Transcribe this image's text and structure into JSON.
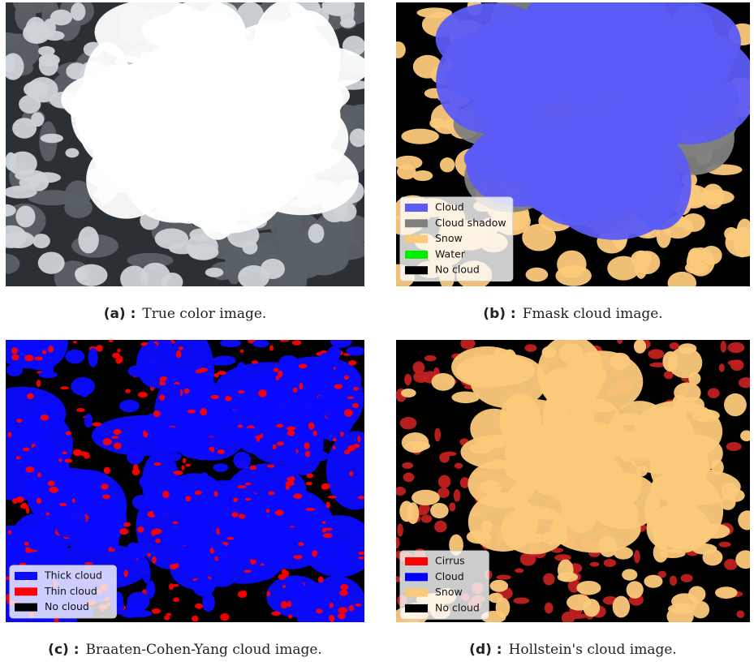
{
  "panels": [
    {
      "label": "(a) :",
      "caption": "True color image.",
      "legend": []
    },
    {
      "label": "(b) :",
      "caption": "Fmask cloud image.",
      "legend": [
        {
          "text": "Cloud",
          "color": "#5b5bf5"
        },
        {
          "text": "Cloud shadow",
          "color": "#808080"
        },
        {
          "text": "Snow",
          "color": "#fbc97a"
        },
        {
          "text": "Water",
          "color": "#00ee00"
        },
        {
          "text": "No cloud",
          "color": "#000000"
        }
      ]
    },
    {
      "label": "(c) :",
      "caption": "Braaten-Cohen-Yang cloud image.",
      "legend": [
        {
          "text": "Thick cloud",
          "color": "#0a0aff"
        },
        {
          "text": "Thin cloud",
          "color": "#ff0000"
        },
        {
          "text": "No cloud",
          "color": "#000000"
        }
      ]
    },
    {
      "label": "(d) :",
      "caption": "Hollstein's cloud image.",
      "legend": [
        {
          "text": "Cirrus",
          "color": "#ff0000"
        },
        {
          "text": "Cloud",
          "color": "#0000ff"
        },
        {
          "text": "Snow",
          "color": "#fbc97a"
        },
        {
          "text": "No cloud",
          "color": "#000000"
        }
      ]
    }
  ]
}
